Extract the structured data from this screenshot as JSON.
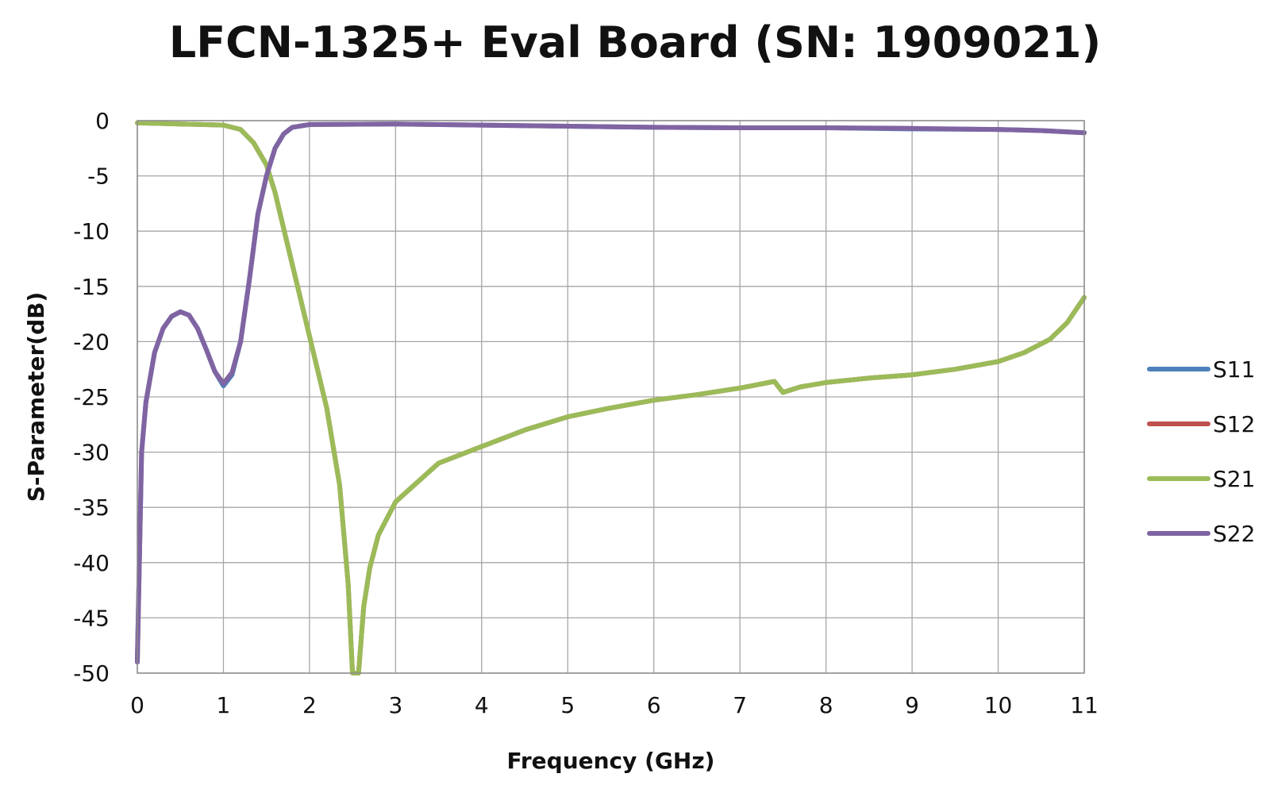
{
  "chart_data": {
    "type": "line",
    "title": "LFCN-1325+ Eval Board (SN: 1909021)",
    "xlabel": "Frequency (GHz)",
    "ylabel": "S-Parameter(dB)",
    "xlim": [
      0,
      11
    ],
    "ylim": [
      -50,
      0
    ],
    "x_ticks": [
      0,
      1,
      2,
      3,
      4,
      5,
      6,
      7,
      8,
      9,
      10,
      11
    ],
    "y_ticks": [
      0,
      -5,
      -10,
      -15,
      -20,
      -25,
      -30,
      -35,
      -40,
      -45,
      -50
    ],
    "grid": true,
    "legend_position": "right",
    "series": [
      {
        "name": "S11",
        "color": "#4F81BD",
        "points": [
          [
            0,
            -49
          ],
          [
            0.05,
            -30
          ],
          [
            0.1,
            -25.5
          ],
          [
            0.2,
            -21
          ],
          [
            0.3,
            -18.8
          ],
          [
            0.4,
            -17.7
          ],
          [
            0.5,
            -17.3
          ],
          [
            0.6,
            -17.6
          ],
          [
            0.7,
            -18.8
          ],
          [
            0.8,
            -20.7
          ],
          [
            0.9,
            -22.7
          ],
          [
            1.0,
            -24
          ],
          [
            1.1,
            -23
          ],
          [
            1.2,
            -20
          ],
          [
            1.3,
            -14.5
          ],
          [
            1.4,
            -8.5
          ],
          [
            1.5,
            -5
          ],
          [
            1.6,
            -2.5
          ],
          [
            1.7,
            -1.2
          ],
          [
            1.8,
            -0.6
          ],
          [
            2.0,
            -0.35
          ],
          [
            3,
            -0.3
          ],
          [
            4,
            -0.4
          ],
          [
            5,
            -0.5
          ],
          [
            6,
            -0.6
          ],
          [
            7,
            -0.65
          ],
          [
            8,
            -0.65
          ],
          [
            9,
            -0.75
          ],
          [
            10,
            -0.8
          ],
          [
            10.5,
            -0.9
          ],
          [
            11,
            -1.1
          ]
        ]
      },
      {
        "name": "S12",
        "color": "#C0504D",
        "points": [
          [
            0,
            -0.2
          ],
          [
            0.5,
            -0.3
          ],
          [
            1.0,
            -0.4
          ],
          [
            1.2,
            -0.8
          ],
          [
            1.35,
            -2
          ],
          [
            1.5,
            -4
          ],
          [
            1.6,
            -6.5
          ],
          [
            1.8,
            -13
          ],
          [
            2.0,
            -19.5
          ],
          [
            2.2,
            -26
          ],
          [
            2.35,
            -33
          ],
          [
            2.45,
            -42
          ],
          [
            2.5,
            -50
          ],
          [
            2.57,
            -50
          ],
          [
            2.63,
            -44
          ],
          [
            2.7,
            -40.5
          ],
          [
            2.8,
            -37.5
          ],
          [
            3.0,
            -34.5
          ],
          [
            3.5,
            -31
          ],
          [
            4,
            -29.5
          ],
          [
            4.5,
            -28
          ],
          [
            5,
            -26.8
          ],
          [
            5.5,
            -26
          ],
          [
            6,
            -25.3
          ],
          [
            6.5,
            -24.8
          ],
          [
            7,
            -24.2
          ],
          [
            7.4,
            -23.6
          ],
          [
            7.5,
            -24.6
          ],
          [
            7.7,
            -24.1
          ],
          [
            8,
            -23.7
          ],
          [
            8.5,
            -23.3
          ],
          [
            9,
            -23
          ],
          [
            9.5,
            -22.5
          ],
          [
            10,
            -21.8
          ],
          [
            10.3,
            -21
          ],
          [
            10.6,
            -19.8
          ],
          [
            10.8,
            -18.3
          ],
          [
            11,
            -16
          ]
        ]
      },
      {
        "name": "S21",
        "color": "#9BBB59",
        "points": [
          [
            0,
            -0.2
          ],
          [
            0.5,
            -0.3
          ],
          [
            1.0,
            -0.4
          ],
          [
            1.2,
            -0.8
          ],
          [
            1.35,
            -2
          ],
          [
            1.5,
            -4
          ],
          [
            1.6,
            -6.5
          ],
          [
            1.8,
            -13
          ],
          [
            2.0,
            -19.5
          ],
          [
            2.2,
            -26
          ],
          [
            2.35,
            -33
          ],
          [
            2.45,
            -42
          ],
          [
            2.5,
            -50
          ],
          [
            2.57,
            -50
          ],
          [
            2.63,
            -44
          ],
          [
            2.7,
            -40.5
          ],
          [
            2.8,
            -37.5
          ],
          [
            3.0,
            -34.5
          ],
          [
            3.5,
            -31
          ],
          [
            4,
            -29.5
          ],
          [
            4.5,
            -28
          ],
          [
            5,
            -26.8
          ],
          [
            5.5,
            -26
          ],
          [
            6,
            -25.3
          ],
          [
            6.5,
            -24.8
          ],
          [
            7,
            -24.2
          ],
          [
            7.4,
            -23.6
          ],
          [
            7.5,
            -24.6
          ],
          [
            7.7,
            -24.1
          ],
          [
            8,
            -23.7
          ],
          [
            8.5,
            -23.3
          ],
          [
            9,
            -23
          ],
          [
            9.5,
            -22.5
          ],
          [
            10,
            -21.8
          ],
          [
            10.3,
            -21
          ],
          [
            10.6,
            -19.8
          ],
          [
            10.8,
            -18.3
          ],
          [
            11,
            -16
          ]
        ]
      },
      {
        "name": "S22",
        "color": "#8064A2",
        "points": [
          [
            0,
            -49
          ],
          [
            0.05,
            -30
          ],
          [
            0.1,
            -25.5
          ],
          [
            0.2,
            -21
          ],
          [
            0.3,
            -18.8
          ],
          [
            0.4,
            -17.7
          ],
          [
            0.5,
            -17.3
          ],
          [
            0.6,
            -17.6
          ],
          [
            0.7,
            -18.8
          ],
          [
            0.8,
            -20.7
          ],
          [
            0.9,
            -22.7
          ],
          [
            1.0,
            -23.8
          ],
          [
            1.1,
            -22.8
          ],
          [
            1.2,
            -20
          ],
          [
            1.3,
            -14.5
          ],
          [
            1.4,
            -8.5
          ],
          [
            1.5,
            -5
          ],
          [
            1.6,
            -2.5
          ],
          [
            1.7,
            -1.2
          ],
          [
            1.8,
            -0.6
          ],
          [
            2.0,
            -0.35
          ],
          [
            3,
            -0.3
          ],
          [
            4,
            -0.4
          ],
          [
            5,
            -0.5
          ],
          [
            6,
            -0.6
          ],
          [
            7,
            -0.65
          ],
          [
            8,
            -0.65
          ],
          [
            9,
            -0.7
          ],
          [
            10,
            -0.8
          ],
          [
            10.5,
            -0.9
          ],
          [
            11,
            -1.1
          ]
        ]
      }
    ]
  }
}
